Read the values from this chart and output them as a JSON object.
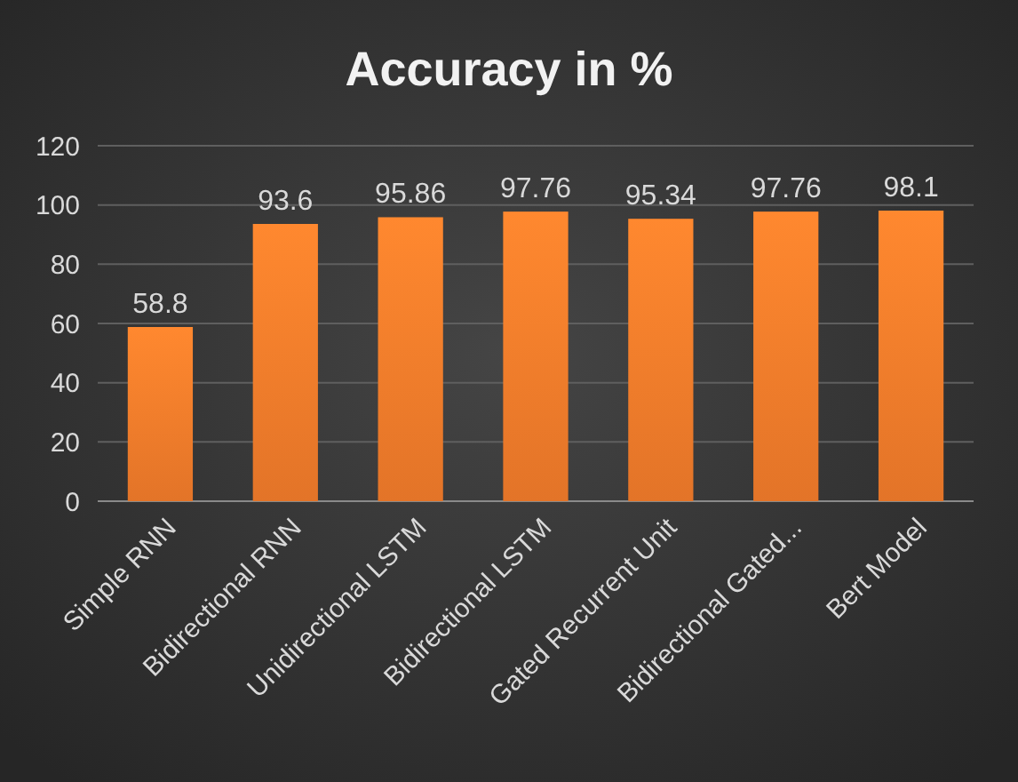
{
  "chart_data": {
    "type": "bar",
    "title": "Accuracy in %",
    "categories": [
      "Simple RNN",
      "Bidirectional RNN",
      "Unidirectional LSTM",
      "Bidirectional LSTM",
      "Gated Recurrent Unit",
      "Bidirectional Gated...",
      "Bert Model"
    ],
    "values": [
      58.8,
      93.6,
      95.86,
      97.76,
      95.34,
      97.76,
      98.1
    ],
    "color": "#f07a2a",
    "ylim": [
      0,
      120
    ],
    "yticks": [
      0,
      20,
      40,
      60,
      80,
      100,
      120
    ],
    "grid": "y",
    "data_labels": true
  }
}
